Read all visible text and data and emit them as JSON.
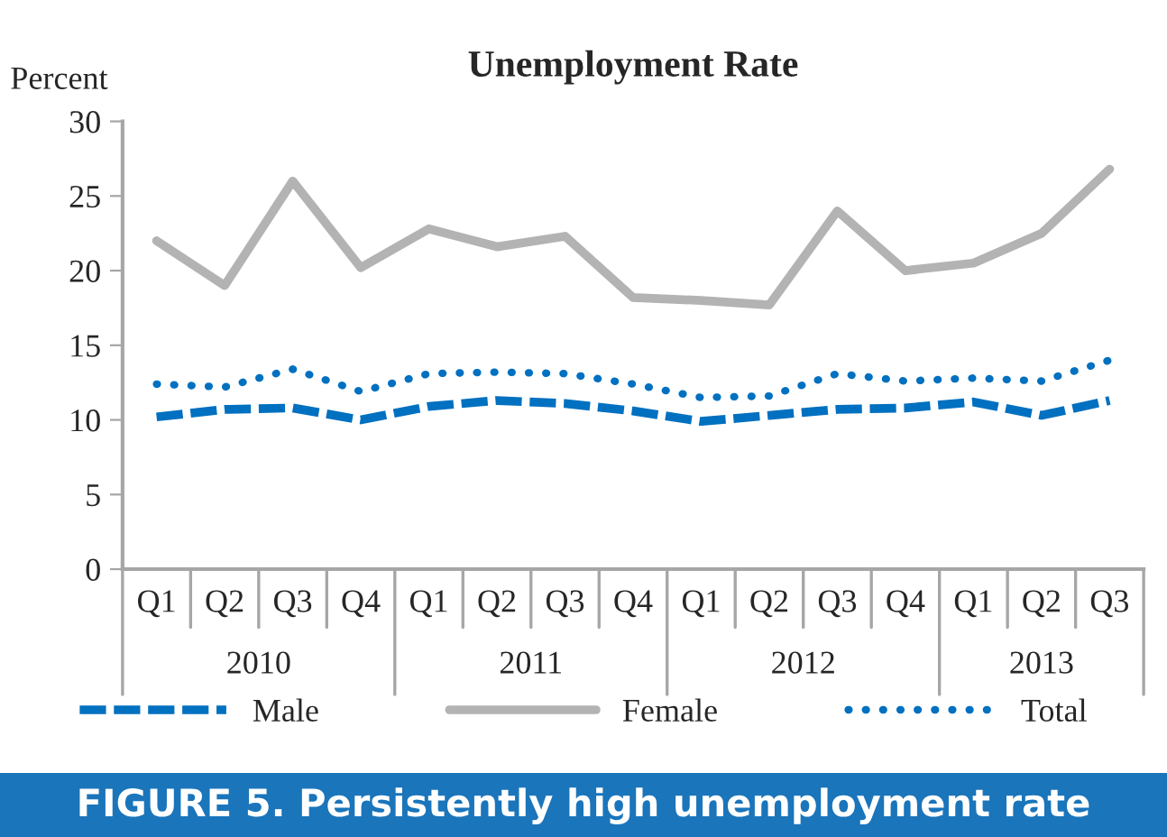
{
  "chart_data": {
    "type": "line",
    "title": "Unemployment Rate",
    "ylabel": "Percent",
    "categories": [
      "Q1",
      "Q2",
      "Q3",
      "Q4",
      "Q1",
      "Q2",
      "Q3",
      "Q4",
      "Q1",
      "Q2",
      "Q3",
      "Q4",
      "Q1",
      "Q2",
      "Q3"
    ],
    "series": [
      {
        "name": "Male",
        "color": "#0070c0",
        "line_style": "dashed",
        "values": [
          10.2,
          10.7,
          10.8,
          10.0,
          10.9,
          11.3,
          11.1,
          10.6,
          9.9,
          10.3,
          10.7,
          10.8,
          11.2,
          10.3,
          11.3
        ]
      },
      {
        "name": "Female",
        "color": "#b3b3b3",
        "line_style": "solid",
        "values": [
          22.0,
          19.0,
          26.0,
          20.2,
          22.8,
          21.6,
          22.3,
          18.2,
          18.0,
          17.7,
          24.0,
          20.0,
          20.5,
          22.5,
          26.8
        ]
      },
      {
        "name": "Total",
        "color": "#0070c0",
        "line_style": "dotted",
        "values": [
          12.4,
          12.2,
          13.4,
          11.9,
          13.1,
          13.2,
          13.1,
          12.4,
          11.5,
          11.6,
          13.1,
          12.6,
          12.8,
          12.6,
          14.0
        ]
      }
    ],
    "ylim": [
      0,
      30
    ],
    "yticks": [
      0,
      5,
      10,
      15,
      20,
      25,
      30
    ],
    "grid": false,
    "legend": "bottom",
    "marker": "none",
    "annotations": [
      "2010",
      "2011",
      "2012",
      "2013",
      "FIGURE 5. Persistently high unemployment rate"
    ]
  }
}
